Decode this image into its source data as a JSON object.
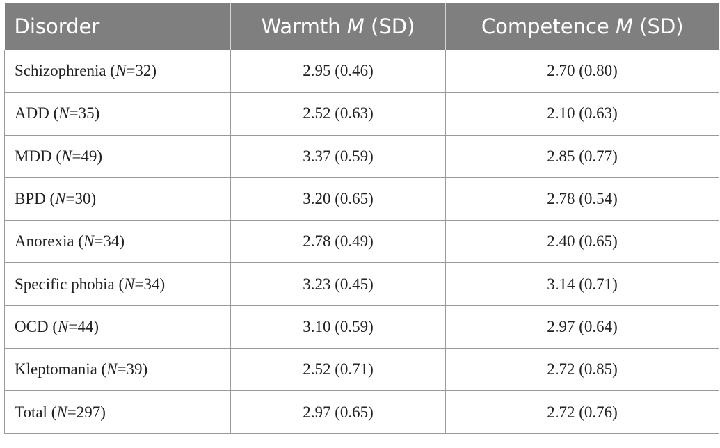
{
  "header": {
    "disorder": "Disorder",
    "warmth_prefix": "Warmth ",
    "competence_prefix": "Competence ",
    "mean_symbol": "M",
    "sd_suffix": " (SD)"
  },
  "n_symbol": "N",
  "rows": [
    {
      "name": "Schizophrenia",
      "n": "32",
      "warmth": "2.95 (0.46)",
      "competence": "2.70 (0.80)"
    },
    {
      "name": "ADD",
      "n": "35",
      "warmth": "2.52 (0.63)",
      "competence": "2.10 (0.63)"
    },
    {
      "name": "MDD",
      "n": "49",
      "warmth": "3.37 (0.59)",
      "competence": "2.85 (0.77)"
    },
    {
      "name": "BPD",
      "n": "30",
      "warmth": "3.20 (0.65)",
      "competence": "2.78 (0.54)"
    },
    {
      "name": "Anorexia",
      "n": "34",
      "warmth": "2.78 (0.49)",
      "competence": "2.40 (0.65)"
    },
    {
      "name": "Specific phobia",
      "n": "34",
      "warmth": "3.23 (0.45)",
      "competence": "3.14 (0.71)"
    },
    {
      "name": "OCD",
      "n": "44",
      "warmth": "3.10 (0.59)",
      "competence": "2.97 (0.64)"
    },
    {
      "name": "Kleptomania",
      "n": "39",
      "warmth": "2.52 (0.71)",
      "competence": "2.72 (0.85)"
    },
    {
      "name": "Total",
      "n": "297",
      "warmth": "2.97 (0.65)",
      "competence": "2.72 (0.76)"
    }
  ],
  "colors": {
    "header_background": "#7f7f7f",
    "header_text": "#ffffff",
    "grid_lines": "#9a9a9a"
  }
}
